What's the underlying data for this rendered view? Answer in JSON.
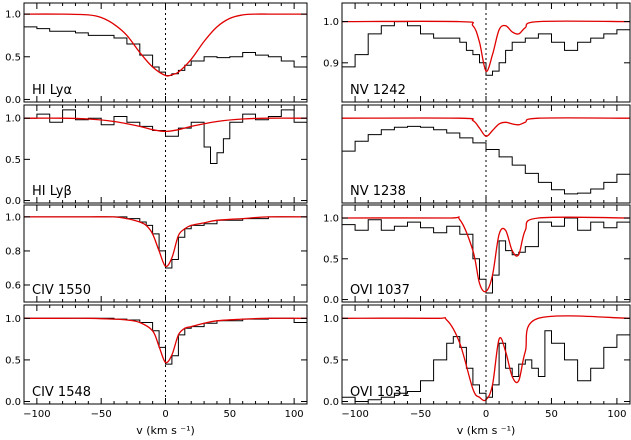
{
  "chart_data": [
    {
      "type": "line",
      "label": "HI Lyα",
      "xlim": [
        -110,
        110
      ],
      "ylim": [
        -0.03,
        1.13
      ],
      "yticks": [
        0.0,
        0.5,
        1.0
      ],
      "ytick_labels": [
        "0.0",
        "0.5",
        "1.0"
      ],
      "series": [
        {
          "style": "step-black",
          "x": [
            -110,
            -100,
            -90,
            -80,
            -70,
            -60,
            -50,
            -40,
            -30,
            -20,
            -10,
            -5,
            0,
            5,
            10,
            15,
            20,
            30,
            40,
            50,
            60,
            70,
            80,
            90,
            100,
            110
          ],
          "y": [
            0.85,
            0.83,
            0.8,
            0.8,
            0.78,
            0.75,
            0.75,
            0.72,
            0.65,
            0.52,
            0.38,
            0.32,
            0.28,
            0.3,
            0.34,
            0.4,
            0.45,
            0.5,
            0.49,
            0.5,
            0.55,
            0.52,
            0.5,
            0.45,
            0.38,
            0.33
          ]
        },
        {
          "style": "model-red",
          "x": [
            -110,
            -80,
            -60,
            -50,
            -40,
            -30,
            -20,
            -10,
            0,
            5,
            10,
            20,
            30,
            40,
            50,
            60,
            70,
            80,
            90,
            110
          ],
          "y": [
            1.0,
            1.0,
            0.99,
            0.96,
            0.88,
            0.75,
            0.55,
            0.38,
            0.28,
            0.29,
            0.32,
            0.47,
            0.68,
            0.85,
            0.95,
            0.99,
            1.0,
            1.0,
            1.0,
            1.0
          ]
        }
      ]
    },
    {
      "type": "line",
      "label": "NV 1242",
      "xlim": [
        -110,
        110
      ],
      "ylim": [
        0.805,
        1.045
      ],
      "yticks": [
        0.9,
        1.0
      ],
      "ytick_labels": [
        "0.9",
        "1.0"
      ],
      "series": [
        {
          "style": "step-black",
          "x": [
            -110,
            -100,
            -90,
            -80,
            -70,
            -60,
            -50,
            -40,
            -30,
            -20,
            -15,
            -10,
            -5,
            0,
            5,
            10,
            15,
            20,
            30,
            40,
            50,
            60,
            70,
            80,
            90,
            100,
            110
          ],
          "y": [
            0.89,
            0.92,
            0.97,
            0.99,
            1.0,
            0.99,
            0.97,
            0.96,
            0.96,
            0.95,
            0.93,
            0.92,
            0.9,
            0.87,
            0.88,
            0.9,
            0.93,
            0.95,
            0.96,
            0.97,
            0.95,
            0.93,
            0.95,
            0.96,
            0.97,
            0.98,
            1.0
          ]
        },
        {
          "style": "model-red",
          "x": [
            -110,
            -20,
            -10,
            -5,
            0,
            5,
            10,
            15,
            20,
            25,
            30,
            40,
            110
          ],
          "y": [
            1.0,
            1.0,
            0.99,
            0.95,
            0.88,
            0.92,
            0.98,
            0.99,
            0.975,
            0.97,
            0.985,
            1.0,
            1.0
          ]
        }
      ]
    },
    {
      "type": "line",
      "label": "HI Lyβ",
      "xlim": [
        -110,
        110
      ],
      "ylim": [
        -0.03,
        1.16
      ],
      "yticks": [
        0.0,
        0.5,
        1.0
      ],
      "ytick_labels": [
        "0.0",
        "0.5",
        "1.0"
      ],
      "series": [
        {
          "style": "step-black",
          "x": [
            -110,
            -100,
            -90,
            -80,
            -70,
            -60,
            -50,
            -40,
            -30,
            -20,
            -10,
            0,
            10,
            20,
            30,
            35,
            40,
            45,
            50,
            60,
            70,
            80,
            90,
            100,
            110
          ],
          "y": [
            1.0,
            1.05,
            0.95,
            1.1,
            0.98,
            1.0,
            0.92,
            1.02,
            0.95,
            0.9,
            0.85,
            0.78,
            0.88,
            0.95,
            0.65,
            0.45,
            0.58,
            0.75,
            0.95,
            1.05,
            0.98,
            1.02,
            1.1,
            0.95,
            1.05
          ]
        },
        {
          "style": "model-red",
          "x": [
            -110,
            -80,
            -60,
            -40,
            -20,
            -10,
            0,
            10,
            20,
            40,
            60,
            80,
            110
          ],
          "y": [
            1.0,
            1.0,
            0.99,
            0.96,
            0.9,
            0.86,
            0.84,
            0.86,
            0.9,
            0.96,
            0.99,
            1.0,
            1.0
          ]
        }
      ]
    },
    {
      "type": "line",
      "label": "NV 1238",
      "xlim": [
        -110,
        110
      ],
      "ylim": [
        -0.03,
        1.16
      ],
      "yticks": [],
      "ytick_labels": [],
      "series": [
        {
          "style": "step-black",
          "x": [
            -110,
            -100,
            -90,
            -80,
            -70,
            -60,
            -50,
            -40,
            -30,
            -20,
            -10,
            0,
            10,
            20,
            30,
            40,
            50,
            60,
            70,
            80,
            90,
            100,
            110
          ],
          "y": [
            0.6,
            0.72,
            0.8,
            0.86,
            0.89,
            0.9,
            0.89,
            0.86,
            0.82,
            0.76,
            0.7,
            0.62,
            0.53,
            0.43,
            0.33,
            0.22,
            0.13,
            0.08,
            0.09,
            0.14,
            0.22,
            0.32,
            0.42
          ]
        },
        {
          "style": "model-red",
          "x": [
            -110,
            -20,
            -10,
            -5,
            0,
            5,
            10,
            15,
            20,
            25,
            30,
            40,
            110
          ],
          "y": [
            1.0,
            1.0,
            0.97,
            0.88,
            0.78,
            0.85,
            0.93,
            0.95,
            0.93,
            0.92,
            0.95,
            1.0,
            1.0
          ]
        }
      ]
    },
    {
      "type": "line",
      "label": "CIV 1550",
      "xlim": [
        -110,
        110
      ],
      "ylim": [
        0.5,
        1.07
      ],
      "yticks": [
        0.6,
        0.8,
        1.0
      ],
      "ytick_labels": [
        "0.6",
        "0.8",
        "1.0"
      ],
      "series": [
        {
          "style": "step-black",
          "x": [
            -110,
            -80,
            -60,
            -40,
            -30,
            -20,
            -15,
            -10,
            -5,
            0,
            5,
            10,
            15,
            20,
            30,
            40,
            60,
            80,
            110
          ],
          "y": [
            1.0,
            1.0,
            1.0,
            1.0,
            0.99,
            0.97,
            0.95,
            0.9,
            0.8,
            0.7,
            0.75,
            0.88,
            0.93,
            0.95,
            0.96,
            0.98,
            0.99,
            1.0,
            1.0
          ]
        },
        {
          "style": "model-red",
          "x": [
            -110,
            -80,
            -60,
            -40,
            -30,
            -20,
            -15,
            -10,
            -5,
            0,
            5,
            10,
            15,
            20,
            30,
            40,
            60,
            80,
            110
          ],
          "y": [
            1.0,
            1.0,
            1.0,
            1.0,
            0.99,
            0.97,
            0.95,
            0.9,
            0.8,
            0.71,
            0.76,
            0.89,
            0.93,
            0.95,
            0.965,
            0.98,
            0.99,
            1.0,
            1.0
          ]
        }
      ]
    },
    {
      "type": "line",
      "label": "OVI 1037",
      "xlim": [
        -110,
        110
      ],
      "ylim": [
        -0.03,
        1.16
      ],
      "yticks": [
        0.0,
        0.5,
        1.0
      ],
      "ytick_labels": [
        "0.0",
        "0.5",
        "1.0"
      ],
      "series": [
        {
          "style": "step-black",
          "x": [
            -110,
            -100,
            -90,
            -80,
            -70,
            -60,
            -50,
            -40,
            -30,
            -20,
            -10,
            -5,
            0,
            5,
            10,
            15,
            20,
            25,
            30,
            40,
            50,
            60,
            70,
            80,
            90,
            100,
            110
          ],
          "y": [
            0.92,
            0.85,
            0.98,
            0.85,
            0.9,
            0.95,
            0.88,
            0.82,
            0.9,
            0.8,
            0.5,
            0.25,
            0.08,
            0.3,
            0.72,
            0.6,
            0.55,
            0.58,
            0.65,
            0.95,
            0.9,
            1.0,
            0.85,
            0.95,
            0.88,
            0.95,
            0.9
          ]
        },
        {
          "style": "model-red",
          "x": [
            -110,
            -30,
            -20,
            -10,
            -5,
            0,
            5,
            10,
            15,
            20,
            25,
            30,
            40,
            110
          ],
          "y": [
            1.0,
            1.0,
            0.98,
            0.6,
            0.2,
            0.1,
            0.3,
            0.8,
            0.85,
            0.6,
            0.55,
            0.85,
            1.0,
            1.0
          ]
        }
      ]
    },
    {
      "type": "line",
      "label": "CIV 1548",
      "xlim": [
        -110,
        110
      ],
      "ylim": [
        -0.03,
        1.16
      ],
      "yticks": [
        0.0,
        0.5,
        1.0
      ],
      "ytick_labels": [
        "0.0",
        "0.5",
        "1.0"
      ],
      "series": [
        {
          "style": "step-black",
          "x": [
            -110,
            -80,
            -60,
            -40,
            -30,
            -20,
            -10,
            -5,
            0,
            5,
            10,
            15,
            20,
            30,
            40,
            60,
            80,
            100,
            110
          ],
          "y": [
            1.0,
            1.0,
            1.0,
            0.99,
            0.98,
            0.95,
            0.85,
            0.65,
            0.45,
            0.55,
            0.8,
            0.88,
            0.9,
            0.94,
            0.97,
            0.99,
            1.0,
            0.95,
            1.02
          ]
        },
        {
          "style": "model-red",
          "x": [
            -110,
            -80,
            -60,
            -40,
            -30,
            -20,
            -10,
            -5,
            0,
            5,
            10,
            15,
            20,
            30,
            40,
            60,
            80,
            110
          ],
          "y": [
            1.0,
            1.0,
            1.0,
            0.99,
            0.98,
            0.95,
            0.85,
            0.66,
            0.47,
            0.56,
            0.8,
            0.88,
            0.9,
            0.94,
            0.97,
            0.99,
            1.0,
            1.0
          ]
        }
      ]
    },
    {
      "type": "line",
      "label": "OVI 1031",
      "xlim": [
        -110,
        110
      ],
      "ylim": [
        -0.03,
        1.16
      ],
      "yticks": [
        0.0,
        0.5,
        1.0
      ],
      "ytick_labels": [
        "0.0",
        "0.5",
        "1.0"
      ],
      "series": [
        {
          "style": "step-black",
          "x": [
            -110,
            -100,
            -90,
            -80,
            -70,
            -60,
            -50,
            -40,
            -30,
            -25,
            -20,
            -15,
            -10,
            -5,
            0,
            5,
            10,
            15,
            20,
            25,
            30,
            35,
            40,
            45,
            50,
            60,
            70,
            80,
            90,
            100,
            110
          ],
          "y": [
            0.05,
            0.0,
            0.02,
            0.05,
            0.1,
            0.12,
            0.25,
            0.5,
            0.7,
            0.78,
            0.65,
            0.4,
            0.2,
            0.1,
            0.05,
            0.2,
            0.7,
            0.4,
            0.3,
            0.45,
            0.5,
            0.4,
            0.3,
            0.85,
            0.7,
            0.5,
            0.25,
            0.4,
            0.65,
            0.8,
            0.9
          ]
        },
        {
          "style": "model-red",
          "x": [
            -110,
            -40,
            -30,
            -20,
            -10,
            -5,
            0,
            5,
            10,
            15,
            20,
            25,
            30,
            40,
            110
          ],
          "y": [
            1.0,
            1.0,
            0.98,
            0.7,
            0.15,
            0.05,
            0.02,
            0.2,
            0.75,
            0.6,
            0.3,
            0.25,
            0.6,
            1.0,
            1.0
          ]
        }
      ]
    }
  ],
  "x_axis": {
    "label": "v  (km  s ⁻¹)",
    "ticks": [
      -100,
      -50,
      0,
      50,
      100
    ],
    "tick_labels": [
      "−100",
      "−50",
      "0",
      "50",
      "100"
    ]
  },
  "colors": {
    "data": "#000000",
    "model": "#e00000",
    "background": "#ffffff"
  }
}
